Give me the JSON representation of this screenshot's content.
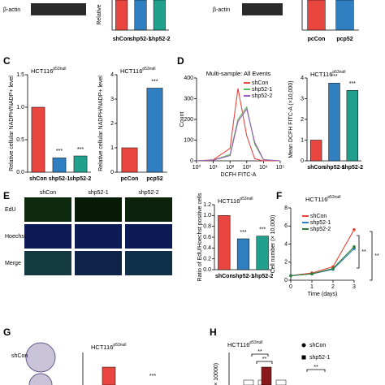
{
  "panels": [
    "C",
    "D",
    "E",
    "F",
    "G",
    "H"
  ],
  "blots": [
    "β-actin",
    "β-actin"
  ],
  "images": {
    "columns": [
      "shCon",
      "shp52-1",
      "shp52-2"
    ],
    "rows": [
      "EdU",
      "Hoechst",
      "Merge"
    ],
    "colony_label": "shCon"
  },
  "chart_data": [
    {
      "type": "bar",
      "y_label": "Relative",
      "categories": [
        "shCon",
        "shp52-1",
        "shp52-2"
      ],
      "colors": [
        "#e8463f",
        "#2f7fc1",
        "#21a08e"
      ]
    },
    {
      "type": "bar",
      "categories": [
        "pcCon",
        "pcp52"
      ],
      "colors": [
        "#e8463f",
        "#2f7fc1"
      ]
    },
    {
      "type": "bar",
      "title": "HCT116",
      "title_superscript": "p53null",
      "y_label": "Relative cellular NADPH/NADP+ level",
      "categories": [
        "shCon",
        "shp52-1",
        "shp52-2"
      ],
      "values": [
        1.0,
        0.22,
        0.25
      ],
      "colors": [
        "#e8463f",
        "#2f7fc1",
        "#21a08e"
      ],
      "annotations": [
        null,
        "***",
        "***"
      ],
      "ylim": [
        0,
        1.5
      ],
      "yticks": [
        {
          "value": 0,
          "label": "0.0"
        },
        {
          "value": 0.5,
          "label": "0.5"
        },
        {
          "value": 1,
          "label": "1.0"
        },
        {
          "value": 1.5,
          "label": "1.5"
        }
      ]
    },
    {
      "type": "bar",
      "title": "HCT116",
      "title_superscript": "p53null",
      "y_label": "Relative cellular NADPH/NADP+ level",
      "categories": [
        "pcCon",
        "pcp52"
      ],
      "values": [
        1.0,
        3.45
      ],
      "colors": [
        "#e8463f",
        "#2f7fc1"
      ],
      "annotations": [
        null,
        "***"
      ],
      "ylim": [
        0,
        4
      ],
      "yticks": [
        0,
        1,
        2,
        3,
        4
      ]
    },
    {
      "type": "line",
      "title": "Multi-sample: All Events",
      "x_label": "DCFH FITC-A",
      "y_label": "Count",
      "log_x": true,
      "x": [
        1,
        10,
        100,
        300,
        1000,
        3000,
        10000,
        100000
      ],
      "xlim": [
        1,
        100000
      ],
      "xticks": [
        {
          "value": 1,
          "label": "10⁰"
        },
        {
          "value": 10,
          "label": "10¹"
        },
        {
          "value": 100,
          "label": "10²"
        },
        {
          "value": 1000,
          "label": "10³"
        },
        {
          "value": 10000,
          "label": "10⁴"
        },
        {
          "value": 100000,
          "label": "10⁵"
        }
      ],
      "ylim": [
        0,
        400
      ],
      "yticks": [
        0,
        100,
        200,
        300,
        400
      ],
      "series": [
        {
          "name": "shCon",
          "color": "#e8463f",
          "values": [
            0,
            5,
            60,
            350,
            120,
            10,
            0,
            0
          ]
        },
        {
          "name": "shp52-1",
          "color": "#5cb85c",
          "values": [
            0,
            3,
            30,
            200,
            260,
            80,
            5,
            0
          ]
        },
        {
          "name": "shp52-2",
          "color": "#9b59b6",
          "values": [
            0,
            3,
            25,
            190,
            250,
            90,
            6,
            0
          ]
        }
      ]
    },
    {
      "type": "bar",
      "title": "HCT116",
      "title_superscript": "p53null",
      "y_label": "Mean DCFH FITC-A (×10,000)",
      "categories": [
        "shCon",
        "shp52-1",
        "shp52-2"
      ],
      "values": [
        1.0,
        3.75,
        3.4
      ],
      "colors": [
        "#e8463f",
        "#2f7fc1",
        "#21a08e"
      ],
      "annotations": [
        null,
        "***",
        "***"
      ],
      "ylim": [
        0,
        4
      ],
      "yticks": [
        0,
        1,
        2,
        3,
        4
      ]
    },
    {
      "type": "bar",
      "title": "HCT116",
      "title_superscript": "p53null",
      "y_label": "Ratio of EdU/Hoechst positive cells",
      "categories": [
        "shCon",
        "shp52-1",
        "shp52-2"
      ],
      "values": [
        1.0,
        0.57,
        0.62
      ],
      "colors": [
        "#e8463f",
        "#2f7fc1",
        "#21a08e"
      ],
      "annotations": [
        null,
        "***",
        "***"
      ],
      "ylim": [
        0,
        1.2
      ],
      "yticks": [
        {
          "value": 0,
          "label": "0.0"
        },
        {
          "value": 0.2,
          "label": "0.2"
        },
        {
          "value": 0.4,
          "label": "0.4"
        },
        {
          "value": 0.6,
          "label": "0.6"
        },
        {
          "value": 0.8,
          "label": "0.8"
        },
        {
          "value": 1,
          "label": "1.0"
        },
        {
          "value": 1.2,
          "label": "1.2"
        }
      ]
    },
    {
      "type": "line",
      "title": "HCT116",
      "title_superscript": "p53null",
      "x_label": "Time (days)",
      "y_label": "Cell number (× 10,000)",
      "x": [
        0,
        1,
        2,
        3
      ],
      "xlim": [
        0,
        3
      ],
      "xticks": [
        0,
        1,
        2,
        3
      ],
      "ylim": [
        0,
        8
      ],
      "yticks": [
        0,
        2,
        4,
        6,
        8
      ],
      "markers": true,
      "annotations": [
        "**",
        "**"
      ],
      "series": [
        {
          "name": "shCon",
          "color": "#e8463f",
          "values": [
            0.5,
            0.8,
            1.5,
            5.6
          ]
        },
        {
          "name": "shp52-1",
          "color": "#2f7fc1",
          "values": [
            0.5,
            0.7,
            1.2,
            3.5
          ]
        },
        {
          "name": "shp52-2",
          "color": "#2e7d32",
          "values": [
            0.5,
            0.7,
            1.3,
            3.7
          ]
        }
      ]
    },
    {
      "type": "bar",
      "title": "HCT116",
      "title_superscript": "p53null",
      "annotations": [
        "***"
      ]
    },
    {
      "type": "bar",
      "title": "HCT116",
      "title_superscript": "p53null",
      "y_label": "(× 10000)",
      "annotations": [
        "**",
        "**",
        "**"
      ],
      "series": [
        {
          "name": "shCon",
          "color": "#000000"
        },
        {
          "name": "shp52-1",
          "color": "#000000"
        }
      ]
    }
  ]
}
